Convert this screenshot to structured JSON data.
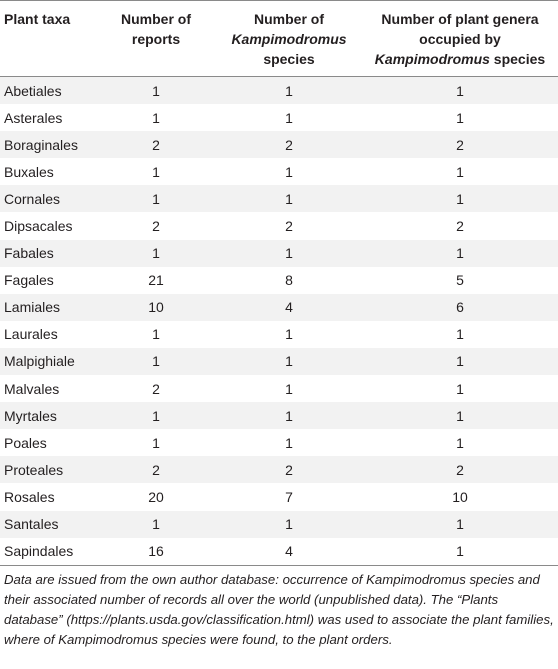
{
  "table": {
    "headers": {
      "col1": "Plant taxa",
      "col2_line1": "Number of",
      "col2_line2": "reports",
      "col3_line1": "Number of",
      "col3_line2_italic": "Kampimodromus",
      "col3_line3": "species",
      "col4_line1": "Number of plant genera",
      "col4_line2": "occupied by",
      "col4_line3_italic": "Kampimodromus",
      "col4_line3_rest": " species"
    },
    "rows": [
      {
        "taxa": "Abetiales",
        "reports": "1",
        "species": "1",
        "genera": "1"
      },
      {
        "taxa": "Asterales",
        "reports": "1",
        "species": "1",
        "genera": "1"
      },
      {
        "taxa": "Boraginales",
        "reports": "2",
        "species": "2",
        "genera": "2"
      },
      {
        "taxa": "Buxales",
        "reports": "1",
        "species": "1",
        "genera": "1"
      },
      {
        "taxa": "Cornales",
        "reports": "1",
        "species": "1",
        "genera": "1"
      },
      {
        "taxa": "Dipsacales",
        "reports": "2",
        "species": "2",
        "genera": "2"
      },
      {
        "taxa": "Fabales",
        "reports": "1",
        "species": "1",
        "genera": "1"
      },
      {
        "taxa": "Fagales",
        "reports": "21",
        "species": "8",
        "genera": "5"
      },
      {
        "taxa": "Lamiales",
        "reports": "10",
        "species": "4",
        "genera": "6"
      },
      {
        "taxa": "Laurales",
        "reports": "1",
        "species": "1",
        "genera": "1"
      },
      {
        "taxa": "Malpighiale",
        "reports": "1",
        "species": "1",
        "genera": "1"
      },
      {
        "taxa": "Malvales",
        "reports": "2",
        "species": "1",
        "genera": "1"
      },
      {
        "taxa": "Myrtales",
        "reports": "1",
        "species": "1",
        "genera": "1"
      },
      {
        "taxa": "Poales",
        "reports": "1",
        "species": "1",
        "genera": "1"
      },
      {
        "taxa": "Proteales",
        "reports": "2",
        "species": "2",
        "genera": "2"
      },
      {
        "taxa": "Rosales",
        "reports": "20",
        "species": "7",
        "genera": "10"
      },
      {
        "taxa": "Santales",
        "reports": "1",
        "species": "1",
        "genera": "1"
      },
      {
        "taxa": "Sapindales",
        "reports": "16",
        "species": "4",
        "genera": "1"
      }
    ]
  },
  "footnote": "Data are issued from the own author database: occurrence of Kampimodromus species and their associated number of records all over the world (unpublished data). The “Plants database” (https://plants.usda.gov/classification.html) was used to associate the plant families, where of Kampimodromus species were found, to the plant orders."
}
